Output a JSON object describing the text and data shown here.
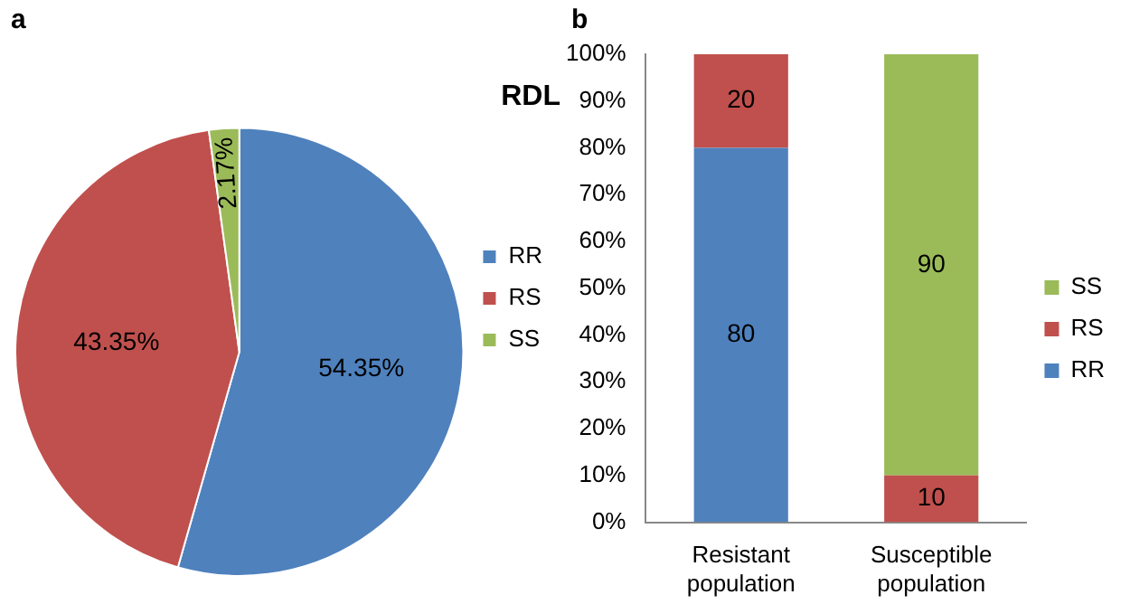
{
  "chart_data": [
    {
      "type": "pie",
      "title": "RDL",
      "annotations": [
        "a"
      ],
      "categories": [
        "RR",
        "RS",
        "SS"
      ],
      "values": [
        54.35,
        43.35,
        2.17
      ],
      "colors": [
        "#4f81bd",
        "#c0504d",
        "#9bbb59"
      ],
      "value_labels": [
        "54.35%",
        "43.35%",
        "2.17%"
      ],
      "legend": "right"
    },
    {
      "type": "bar",
      "stacked": true,
      "annotations": [
        "b"
      ],
      "categories": [
        "Resistant population",
        "Susceptible population"
      ],
      "series": [
        {
          "name": "RR",
          "color": "#4f81bd",
          "values": [
            80,
            0
          ],
          "value_labels": [
            "80",
            null
          ]
        },
        {
          "name": "RS",
          "color": "#c0504d",
          "values": [
            20,
            10
          ],
          "value_labels": [
            "20",
            "10"
          ]
        },
        {
          "name": "SS",
          "color": "#9bbb59",
          "values": [
            0,
            90
          ],
          "value_labels": [
            null,
            "90"
          ]
        }
      ],
      "ylim": [
        0,
        100
      ],
      "yticks": [
        {
          "value": 0,
          "label": "0%"
        },
        {
          "value": 10,
          "label": "10%"
        },
        {
          "value": 20,
          "label": "20%"
        },
        {
          "value": 30,
          "label": "30%"
        },
        {
          "value": 40,
          "label": "40%"
        },
        {
          "value": 50,
          "label": "50%"
        },
        {
          "value": 60,
          "label": "60%"
        },
        {
          "value": 70,
          "label": "70%"
        },
        {
          "value": 80,
          "label": "80%"
        },
        {
          "value": 90,
          "label": "90%"
        },
        {
          "value": 100,
          "label": "100%"
        }
      ],
      "grid": false,
      "legend": "right"
    }
  ]
}
